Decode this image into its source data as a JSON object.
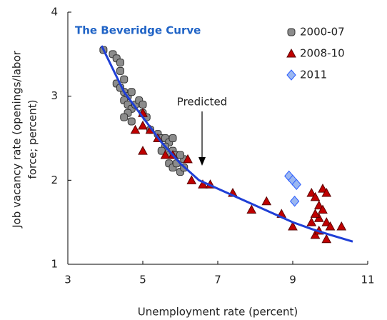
{
  "chart_data": {
    "type": "scatter",
    "title": "The Beveridge Curve",
    "x_label": "Unemployment rate (percent)",
    "y_label": [
      "Job vacancy rate (openings/labor",
      "force; percent)"
    ],
    "annotation": "Predicted",
    "xlim": [
      3,
      11
    ],
    "xticks": [
      3,
      5,
      7,
      9,
      11
    ],
    "ylim": [
      1,
      4
    ],
    "yticks": [
      1,
      2,
      3,
      4
    ],
    "grid": false,
    "series": [
      {
        "name": "2000-07",
        "marker": "circle",
        "color": "#8c8c8c",
        "x": [
          3.95,
          4.2,
          4.3,
          4.4,
          4.4,
          4.3,
          4.4,
          4.5,
          4.6,
          4.7,
          4.5,
          4.6,
          4.7,
          4.8,
          4.9,
          5.0,
          5.0,
          4.6,
          4.5,
          4.7,
          5.1,
          5.2,
          5.4,
          5.5,
          5.6,
          5.7,
          5.8,
          5.6,
          5.5,
          5.7,
          5.8,
          5.9,
          5.7,
          5.8,
          5.9,
          6.0,
          6.1,
          6.1,
          6.0,
          4.4,
          4.5
        ],
        "values": [
          3.55,
          3.5,
          3.45,
          3.4,
          3.3,
          3.15,
          3.1,
          3.05,
          3.0,
          3.05,
          2.95,
          2.9,
          2.85,
          2.9,
          2.95,
          2.9,
          2.8,
          2.8,
          2.75,
          2.7,
          2.75,
          2.6,
          2.55,
          2.5,
          2.5,
          2.45,
          2.5,
          2.4,
          2.35,
          2.3,
          2.35,
          2.3,
          2.2,
          2.15,
          2.2,
          2.1,
          2.15,
          2.25,
          2.3,
          3.1,
          3.2
        ]
      },
      {
        "name": "2008-10",
        "marker": "triangle",
        "color": "#c00000",
        "x": [
          5.0,
          5.0,
          4.8,
          5.2,
          5.4,
          5.6,
          5.0,
          5.8,
          6.2,
          6.3,
          6.6,
          6.8,
          7.4,
          7.9,
          8.3,
          8.7,
          9.0,
          9.5,
          9.6,
          9.7,
          9.7,
          9.8,
          9.9,
          9.8,
          9.9,
          10.0,
          9.6,
          9.7,
          9.9,
          10.3,
          9.5,
          9.6
        ],
        "values": [
          2.8,
          2.65,
          2.6,
          2.6,
          2.5,
          2.3,
          2.35,
          2.3,
          2.25,
          2.0,
          1.95,
          1.95,
          1.85,
          1.65,
          1.75,
          1.6,
          1.45,
          1.85,
          1.8,
          1.7,
          1.55,
          1.9,
          1.85,
          1.65,
          1.5,
          1.45,
          1.35,
          1.4,
          1.3,
          1.45,
          1.5,
          1.6
        ]
      },
      {
        "name": "2011",
        "marker": "diamond",
        "color": "#9bb7f0",
        "x": [
          8.9,
          9.0,
          9.1,
          9.05
        ],
        "values": [
          2.05,
          2.0,
          1.95,
          1.75
        ]
      }
    ],
    "fit": {
      "color": "#1f3fd6",
      "x": [
        3.9,
        4.5,
        5.0,
        5.5,
        6.0,
        6.5,
        7.0,
        7.5,
        8.0,
        8.5,
        9.0,
        9.5,
        10.0,
        10.6
      ],
      "values": [
        3.6,
        3.05,
        2.75,
        2.45,
        2.2,
        2.0,
        1.9,
        1.8,
        1.7,
        1.6,
        1.5,
        1.42,
        1.35,
        1.27
      ]
    }
  }
}
